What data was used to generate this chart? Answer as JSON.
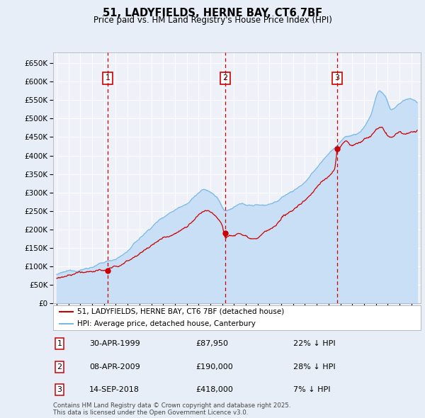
{
  "title": "51, LADYFIELDS, HERNE BAY, CT6 7BF",
  "subtitle": "Price paid vs. HM Land Registry's House Price Index (HPI)",
  "ylim": [
    0,
    680000
  ],
  "yticks": [
    0,
    50000,
    100000,
    150000,
    200000,
    250000,
    300000,
    350000,
    400000,
    450000,
    500000,
    550000,
    600000,
    650000
  ],
  "xlim_start": 1994.7,
  "xlim_end": 2025.8,
  "bg_color": "#e8eef8",
  "plot_bg": "#eef2f8",
  "grid_color": "#ffffff",
  "hpi_color": "#7ab8e8",
  "hpi_fill": "#c8dff5",
  "price_color": "#cc0000",
  "annotation_color": "#cc0000",
  "transactions": [
    {
      "num": 1,
      "date": "30-APR-1999",
      "price": 87950,
      "year": 1999.33
    },
    {
      "num": 2,
      "date": "08-APR-2009",
      "price": 190000,
      "year": 2009.27
    },
    {
      "num": 3,
      "date": "14-SEP-2018",
      "price": 418000,
      "year": 2018.71
    }
  ],
  "legend_label_red": "51, LADYFIELDS, HERNE BAY, CT6 7BF (detached house)",
  "legend_label_blue": "HPI: Average price, detached house, Canterbury",
  "footer": "Contains HM Land Registry data © Crown copyright and database right 2025.\nThis data is licensed under the Open Government Licence v3.0.",
  "table_rows": [
    [
      "1",
      "30-APR-1999",
      "£87,950",
      "22% ↓ HPI"
    ],
    [
      "2",
      "08-APR-2009",
      "£190,000",
      "28% ↓ HPI"
    ],
    [
      "3",
      "14-SEP-2018",
      "£418,000",
      "7% ↓ HPI"
    ]
  ]
}
